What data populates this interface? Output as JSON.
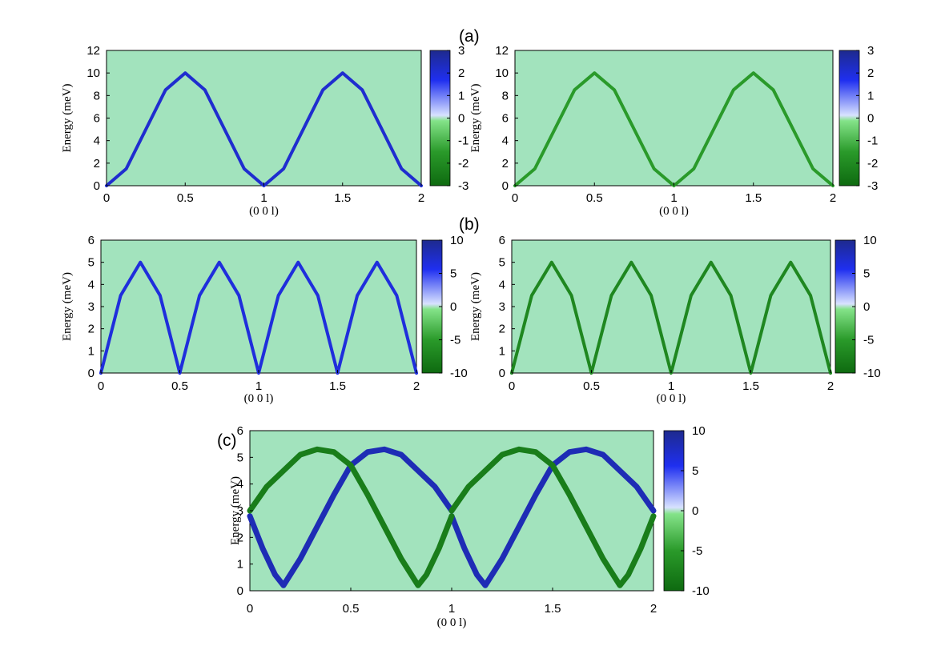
{
  "figure": {
    "panel_labels": [
      "(a)",
      "(b)",
      "(c)"
    ]
  },
  "colors": {
    "background": "#a2e3bd",
    "positive_max": "#1e2a8e",
    "positive": "#1f2ff0",
    "positive_light": "#d8e2ff",
    "negative_light": "#84e389",
    "negative": "#2a9a2a",
    "negative_max": "#0e6a10"
  },
  "chart_data": [
    {
      "type": "heatmap",
      "panel": "(a)",
      "xlabel": "(0 0 l)",
      "ylabel": "Energy (meV)",
      "x_ticks": [
        "0",
        "0.5",
        "1",
        "1.5",
        "2"
      ],
      "y_ticks": [
        "0",
        "2",
        "4",
        "6",
        "8",
        "10",
        "12"
      ],
      "xlim": [
        0,
        2
      ],
      "ylim": [
        0,
        12
      ],
      "colorbar_ticks": [
        "3",
        "2",
        "1",
        "0",
        "-1",
        "-2",
        "-3"
      ],
      "colorbar_range": [
        -3,
        3
      ],
      "series": [
        {
          "x": [
            0,
            0.125,
            0.25,
            0.375,
            0.5,
            0.625,
            0.75,
            0.875,
            1,
            1.125,
            1.25,
            1.375,
            1.5,
            1.625,
            1.75,
            1.875,
            2
          ],
          "y": [
            0,
            1.5,
            5,
            8.5,
            10,
            8.5,
            5,
            1.5,
            0,
            1.5,
            5,
            8.5,
            10,
            8.5,
            5,
            1.5,
            0
          ],
          "color_value": 2
        }
      ]
    },
    {
      "type": "heatmap",
      "panel": "(a)",
      "xlabel": "(0 0 l)",
      "ylabel": "Energy (meV)",
      "x_ticks": [
        "0",
        "0.5",
        "1",
        "1.5",
        "2"
      ],
      "y_ticks": [
        "0",
        "2",
        "4",
        "6",
        "8",
        "10",
        "12"
      ],
      "xlim": [
        0,
        2
      ],
      "ylim": [
        0,
        12
      ],
      "colorbar_ticks": [
        "3",
        "2",
        "1",
        "0",
        "-1",
        "-2",
        "-3"
      ],
      "colorbar_range": [
        -3,
        3
      ],
      "series": [
        {
          "x": [
            0,
            0.125,
            0.25,
            0.375,
            0.5,
            0.625,
            0.75,
            0.875,
            1,
            1.125,
            1.25,
            1.375,
            1.5,
            1.625,
            1.75,
            1.875,
            2
          ],
          "y": [
            0,
            1.5,
            5,
            8.5,
            10,
            8.5,
            5,
            1.5,
            0,
            1.5,
            5,
            8.5,
            10,
            8.5,
            5,
            1.5,
            0
          ],
          "color_value": -1.5
        }
      ]
    },
    {
      "type": "heatmap",
      "panel": "(b)",
      "xlabel": "(0 0 l)",
      "ylabel": "Energy (meV)",
      "x_ticks": [
        "0",
        "0.5",
        "1",
        "1.5",
        "2"
      ],
      "y_ticks": [
        "0",
        "1",
        "2",
        "3",
        "4",
        "5",
        "6"
      ],
      "xlim": [
        0,
        2
      ],
      "ylim": [
        0,
        6
      ],
      "colorbar_ticks": [
        "10",
        "5",
        "0",
        "-5",
        "-10"
      ],
      "colorbar_range": [
        -10,
        10
      ],
      "series": [
        {
          "x": [
            0,
            0.125,
            0.25,
            0.375,
            0.5,
            0.625,
            0.75,
            0.875,
            1,
            1.125,
            1.25,
            1.375,
            1.5,
            1.625,
            1.75,
            1.875,
            2
          ],
          "y": [
            0,
            3.5,
            5,
            3.5,
            0,
            3.5,
            5,
            3.5,
            0,
            3.5,
            5,
            3.5,
            0,
            3.5,
            5,
            3.5,
            0
          ],
          "color_value": 6
        }
      ]
    },
    {
      "type": "heatmap",
      "panel": "(b)",
      "xlabel": "(0 0 l)",
      "ylabel": "Energy (meV)",
      "x_ticks": [
        "0",
        "0.5",
        "1",
        "1.5",
        "2"
      ],
      "y_ticks": [
        "0",
        "1",
        "2",
        "3",
        "4",
        "5",
        "6"
      ],
      "xlim": [
        0,
        2
      ],
      "ylim": [
        0,
        6
      ],
      "colorbar_ticks": [
        "10",
        "5",
        "0",
        "-5",
        "-10"
      ],
      "colorbar_range": [
        -10,
        10
      ],
      "series": [
        {
          "x": [
            0,
            0.125,
            0.25,
            0.375,
            0.5,
            0.625,
            0.75,
            0.875,
            1,
            1.125,
            1.25,
            1.375,
            1.5,
            1.625,
            1.75,
            1.875,
            2
          ],
          "y": [
            0,
            3.5,
            5,
            3.5,
            0,
            3.5,
            5,
            3.5,
            0,
            3.5,
            5,
            3.5,
            0,
            3.5,
            5,
            3.5,
            0
          ],
          "color_value": -7
        }
      ]
    },
    {
      "type": "heatmap",
      "panel": "(c)",
      "xlabel": "(0 0 l)",
      "ylabel": "Energy (meV)",
      "x_ticks": [
        "0",
        "0.5",
        "1",
        "1.5",
        "2"
      ],
      "y_ticks": [
        "0",
        "1",
        "2",
        "3",
        "4",
        "5",
        "6"
      ],
      "xlim": [
        0,
        2
      ],
      "ylim": [
        0,
        6
      ],
      "colorbar_ticks": [
        "10",
        "5",
        "0",
        "-5",
        "-10"
      ],
      "colorbar_range": [
        -10,
        10
      ],
      "series": [
        {
          "x": [
            0,
            0.0625,
            0.125,
            0.1667,
            0.25,
            0.3333,
            0.4167,
            0.5,
            0.5833,
            0.6667,
            0.75,
            0.8333,
            0.9167,
            1
          ],
          "y": [
            2.8,
            1.6,
            0.6,
            0.2,
            1.2,
            2.4,
            3.6,
            4.7,
            5.2,
            5.3,
            5.1,
            4.5,
            3.9,
            3.0
          ],
          "color_value": 8
        },
        {
          "x": [
            1,
            1.0625,
            1.125,
            1.1667,
            1.25,
            1.3333,
            1.4167,
            1.5,
            1.5833,
            1.6667,
            1.75,
            1.8333,
            1.9167,
            2
          ],
          "y": [
            2.8,
            1.6,
            0.6,
            0.2,
            1.2,
            2.4,
            3.6,
            4.7,
            5.2,
            5.3,
            5.1,
            4.5,
            3.9,
            3.0
          ],
          "color_value": 8
        },
        {
          "x": [
            0,
            0.0833,
            0.1667,
            0.25,
            0.3333,
            0.4167,
            0.5,
            0.5833,
            0.6667,
            0.75,
            0.8333,
            0.875,
            0.9375,
            1
          ],
          "y": [
            3.0,
            3.9,
            4.5,
            5.1,
            5.3,
            5.2,
            4.7,
            3.6,
            2.4,
            1.2,
            0.2,
            0.6,
            1.6,
            2.8
          ],
          "color_value": -8
        },
        {
          "x": [
            1,
            1.0833,
            1.1667,
            1.25,
            1.3333,
            1.4167,
            1.5,
            1.5833,
            1.6667,
            1.75,
            1.8333,
            1.875,
            1.9375,
            2
          ],
          "y": [
            3.0,
            3.9,
            4.5,
            5.1,
            5.3,
            5.2,
            4.7,
            3.6,
            2.4,
            1.2,
            0.2,
            0.6,
            1.6,
            2.8
          ],
          "color_value": -8
        }
      ]
    }
  ]
}
